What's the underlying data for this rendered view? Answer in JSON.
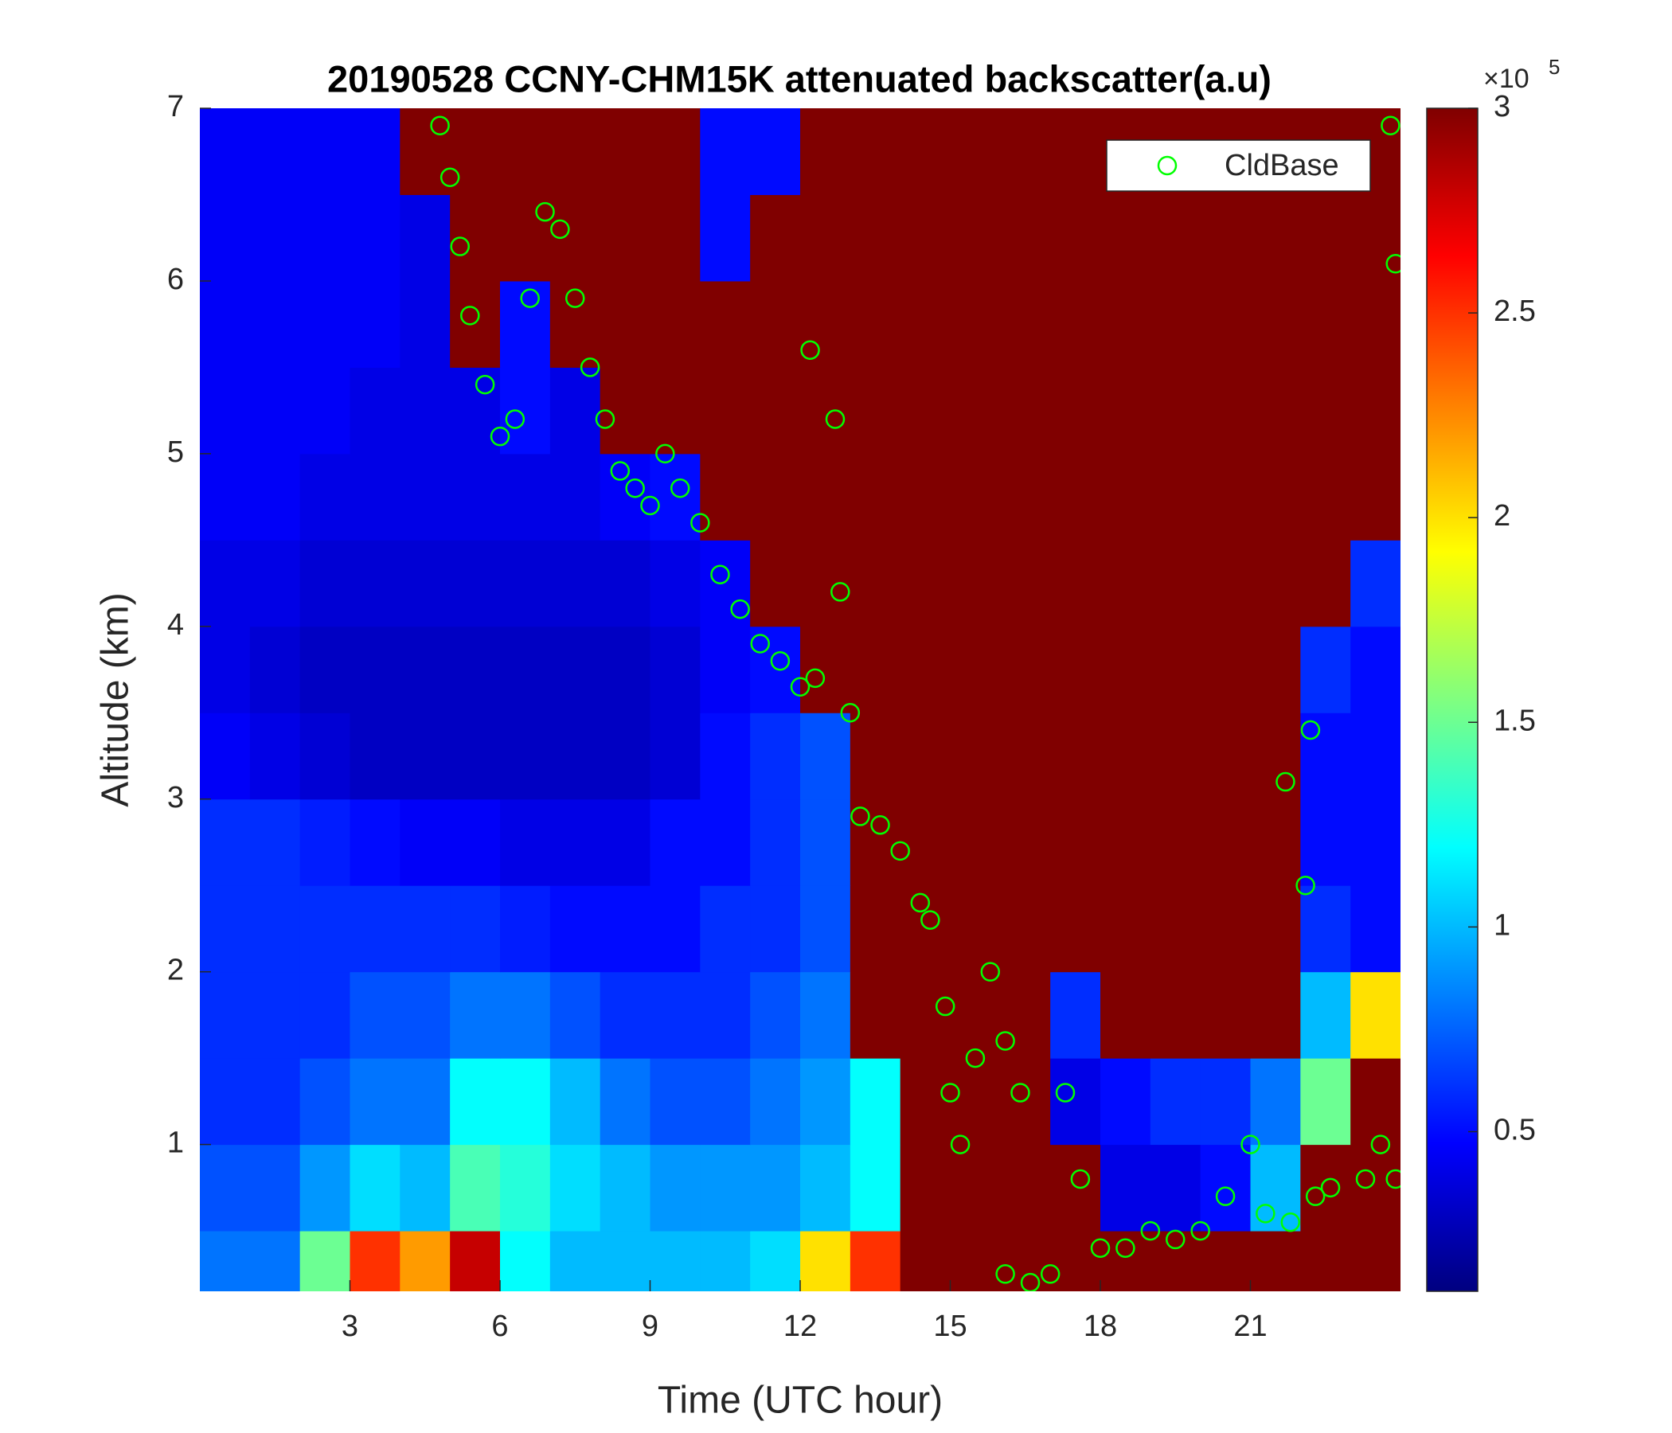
{
  "chart_data": {
    "type": "heatmap",
    "title": "20190528 CCNY-CHM15K attenuated backscatter(a.u)",
    "x_label": "Time (UTC hour)",
    "y_label": "Altitude (km)",
    "xlim": [
      0,
      24
    ],
    "ylim": [
      0.15,
      7
    ],
    "xticks": [
      3,
      6,
      9,
      12,
      15,
      18,
      21
    ],
    "yticks": [
      1,
      2,
      3,
      4,
      5,
      6,
      7
    ],
    "colormap": "jet",
    "clim": [
      0.11,
      3
    ],
    "colorbar_ticks": [
      0.5,
      1,
      1.5,
      2,
      2.5,
      3
    ],
    "colorbar_exponent": {
      "base": "×10",
      "power": "5"
    },
    "x_edges": [
      0,
      1,
      2,
      3,
      4,
      5,
      6,
      7,
      8,
      9,
      10,
      11,
      12,
      13,
      14,
      15,
      16,
      17,
      18,
      19,
      20,
      21,
      22,
      23,
      24
    ],
    "y_edges": [
      0,
      0.5,
      1,
      1.5,
      2,
      2.5,
      3,
      3.5,
      4,
      4.5,
      5,
      5.5,
      6,
      6.5,
      7
    ],
    "z": [
      [
        0.8,
        0.8,
        1.5,
        2.5,
        2.2,
        2.8,
        1.2,
        1.0,
        1.0,
        1.0,
        1.0,
        1.1,
        2.0,
        2.5,
        3,
        3,
        3,
        3,
        3,
        3,
        3,
        3,
        3,
        3
      ],
      [
        0.7,
        0.7,
        0.9,
        1.1,
        1.0,
        1.4,
        1.3,
        1.1,
        1.0,
        0.9,
        0.9,
        0.9,
        1.0,
        1.2,
        3,
        3,
        3,
        3,
        0.4,
        0.4,
        0.5,
        1.0,
        3,
        3
      ],
      [
        0.6,
        0.6,
        0.7,
        0.8,
        0.8,
        1.2,
        1.2,
        1.0,
        0.8,
        0.7,
        0.7,
        0.8,
        0.9,
        1.2,
        3,
        3,
        3,
        0.4,
        0.5,
        0.6,
        0.6,
        0.8,
        1.5,
        3
      ],
      [
        0.6,
        0.6,
        0.6,
        0.7,
        0.7,
        0.8,
        0.8,
        0.7,
        0.6,
        0.6,
        0.6,
        0.7,
        0.8,
        3,
        3,
        3,
        3,
        0.6,
        3,
        3,
        3,
        3,
        1.0,
        2.0
      ],
      [
        0.6,
        0.6,
        0.6,
        0.6,
        0.6,
        0.6,
        0.55,
        0.5,
        0.5,
        0.5,
        0.6,
        0.6,
        0.7,
        3,
        3,
        3,
        3,
        3,
        3,
        3,
        3,
        3,
        0.6,
        0.5
      ],
      [
        0.6,
        0.6,
        0.55,
        0.5,
        0.45,
        0.45,
        0.4,
        0.4,
        0.4,
        0.5,
        0.5,
        0.6,
        0.7,
        3,
        3,
        3,
        3,
        3,
        3,
        3,
        3,
        3,
        0.5,
        0.5
      ],
      [
        0.45,
        0.4,
        0.35,
        0.3,
        0.3,
        0.3,
        0.3,
        0.3,
        0.3,
        0.35,
        0.5,
        0.6,
        0.7,
        3,
        3,
        3,
        3,
        3,
        3,
        3,
        3,
        3,
        0.5,
        0.5
      ],
      [
        0.4,
        0.35,
        0.3,
        0.3,
        0.3,
        0.3,
        0.3,
        0.3,
        0.3,
        0.35,
        0.45,
        0.5,
        3,
        3,
        3,
        3,
        3,
        3,
        3,
        3,
        3,
        3,
        0.6,
        0.5
      ],
      [
        0.4,
        0.4,
        0.35,
        0.35,
        0.35,
        0.35,
        0.35,
        0.35,
        0.35,
        0.4,
        0.45,
        3,
        3,
        3,
        3,
        3,
        3,
        3,
        3,
        3,
        3,
        3,
        3,
        0.6
      ],
      [
        0.45,
        0.45,
        0.4,
        0.4,
        0.4,
        0.4,
        0.4,
        0.4,
        0.45,
        0.5,
        3,
        3,
        3,
        3,
        3,
        3,
        3,
        3,
        3,
        3,
        3,
        3,
        3,
        3
      ],
      [
        0.45,
        0.45,
        0.45,
        0.4,
        0.4,
        0.4,
        0.5,
        0.4,
        3,
        3,
        3,
        3,
        3,
        3,
        3,
        3,
        3,
        3,
        3,
        3,
        3,
        3,
        3,
        3
      ],
      [
        0.45,
        0.45,
        0.45,
        0.45,
        0.4,
        3,
        0.5,
        3,
        3,
        3,
        3,
        3,
        3,
        3,
        3,
        3,
        3,
        3,
        3,
        3,
        3,
        3,
        3,
        3
      ],
      [
        0.45,
        0.45,
        0.45,
        0.45,
        0.4,
        3,
        3,
        3,
        3,
        3,
        0.5,
        3,
        3,
        3,
        3,
        3,
        3,
        3,
        3,
        3,
        3,
        3,
        3,
        3
      ],
      [
        0.45,
        0.45,
        0.45,
        0.45,
        3,
        3,
        3,
        3,
        3,
        3,
        0.5,
        0.5,
        3,
        3,
        3,
        3,
        3,
        3,
        3,
        3,
        3,
        3,
        3,
        3
      ]
    ],
    "legend": "upper right",
    "series": [
      {
        "name": "CldBase",
        "color": "#00ff00",
        "marker": "circle",
        "x": [
          4.8,
          5.0,
          5.2,
          5.4,
          5.7,
          6.0,
          6.3,
          6.6,
          6.9,
          7.2,
          7.5,
          7.8,
          8.1,
          8.4,
          8.7,
          9.0,
          9.3,
          9.6,
          10.0,
          10.4,
          10.8,
          11.2,
          11.6,
          12.0,
          12.3,
          12.2,
          12.7,
          12.8,
          13.0,
          13.2,
          13.6,
          14.0,
          14.4,
          14.6,
          14.9,
          15.0,
          15.2,
          15.5,
          15.8,
          16.1,
          16.4,
          16.1,
          16.6,
          17.0,
          17.3,
          17.6,
          18.0,
          18.5,
          19.0,
          19.5,
          20.0,
          20.5,
          21.0,
          21.3,
          21.8,
          22.2,
          22.3,
          22.6,
          23.3,
          23.6,
          23.8,
          23.9,
          23.9,
          21.7,
          22.1
        ],
        "values": [
          6.9,
          6.6,
          6.2,
          5.8,
          5.4,
          5.1,
          5.2,
          5.9,
          6.4,
          6.3,
          5.9,
          5.5,
          5.2,
          4.9,
          4.8,
          4.7,
          5.0,
          4.8,
          4.6,
          4.3,
          4.1,
          3.9,
          3.8,
          3.65,
          3.7,
          5.6,
          5.2,
          4.2,
          3.5,
          2.9,
          2.85,
          2.7,
          2.4,
          2.3,
          1.8,
          1.3,
          1.0,
          1.5,
          2.0,
          1.6,
          1.3,
          0.25,
          0.2,
          0.25,
          1.3,
          0.8,
          0.4,
          0.4,
          0.5,
          0.45,
          0.5,
          0.7,
          1.0,
          0.6,
          0.55,
          3.4,
          0.7,
          0.75,
          0.8,
          1.0,
          6.9,
          6.1,
          0.8,
          3.1,
          2.5
        ]
      }
    ]
  }
}
